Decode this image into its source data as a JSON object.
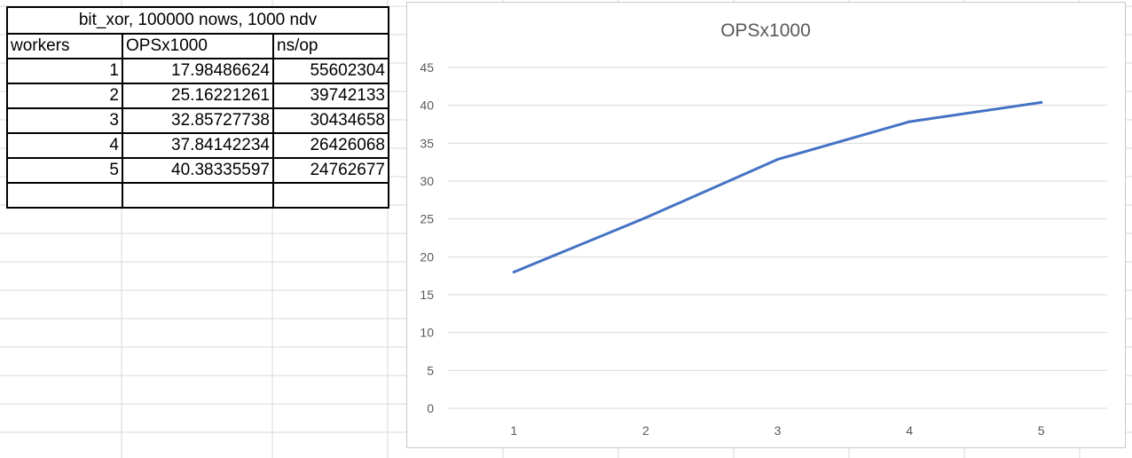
{
  "table": {
    "title": "bit_xor, 100000 nows, 1000 ndv",
    "headers": [
      "workers",
      "OPSx1000",
      "ns/op"
    ],
    "rows": [
      [
        "1",
        "17.98486624",
        "55602304"
      ],
      [
        "2",
        "25.16221261",
        "39742133"
      ],
      [
        "3",
        "32.85727738",
        "30434658"
      ],
      [
        "4",
        "37.84142234",
        "26426068"
      ],
      [
        "5",
        "40.38335597",
        "24762677"
      ],
      [
        "",
        "",
        ""
      ]
    ]
  },
  "chart_data": {
    "type": "line",
    "title": "OPSx1000",
    "categories": [
      "1",
      "2",
      "3",
      "4",
      "5"
    ],
    "series": [
      {
        "values": [
          17.98486624,
          25.16221261,
          32.85727738,
          37.84142234,
          40.38335597
        ],
        "color": "#4472c4"
      }
    ],
    "ylim": [
      0,
      45
    ],
    "yticks": [
      "0",
      "5",
      "10",
      "15",
      "20",
      "25",
      "30",
      "35",
      "40",
      "45"
    ],
    "grid": true,
    "gridline_color": "#d9d9d9",
    "legend": "none"
  }
}
